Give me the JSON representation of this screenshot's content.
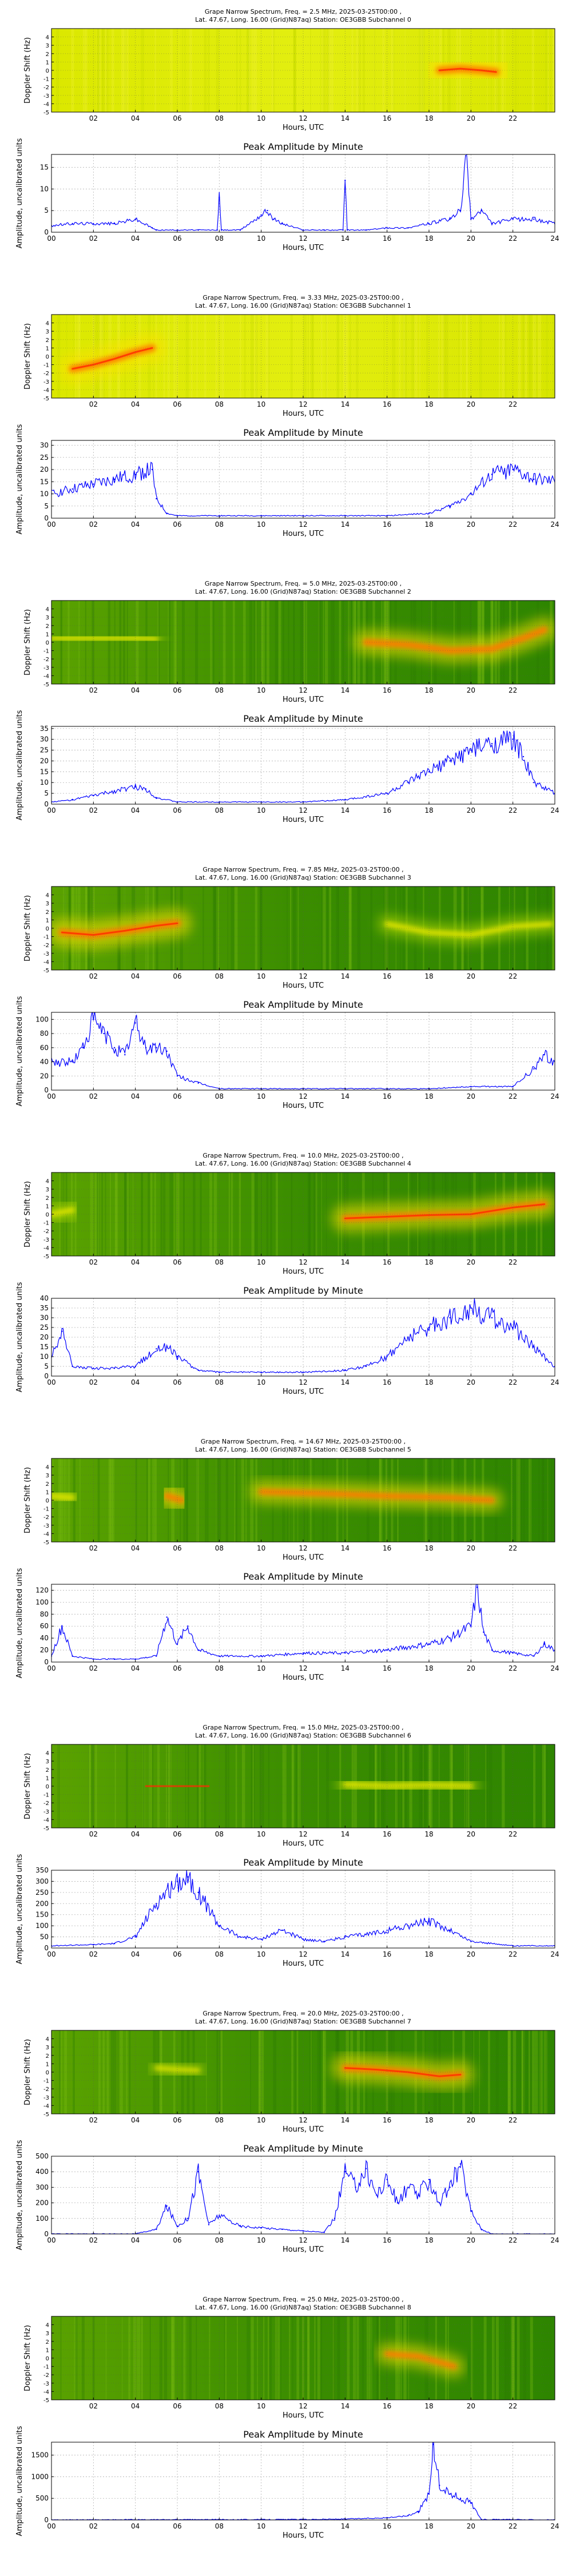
{
  "common": {
    "xlabel": "Hours, UTC",
    "spec_ylabel": "Doppler Shift (Hz)",
    "amp_ylabel": "Amplitude, uncalibrated units",
    "amp_title": "Peak Amplitude by Minute",
    "spec_xticks": [
      "02",
      "04",
      "06",
      "08",
      "10",
      "12",
      "14",
      "16",
      "18",
      "20",
      "22"
    ],
    "spec_yticks": [
      "4",
      "3",
      "2",
      "1",
      "0",
      "-1",
      "-2",
      "-3",
      "-4",
      "-5"
    ],
    "amp_xticks": [
      "00",
      "02",
      "04",
      "06",
      "08",
      "10",
      "12",
      "14",
      "16",
      "18",
      "20",
      "22",
      "24"
    ],
    "colors": {
      "spec_low": "#2e8b00",
      "spec_mid": "#c8e600",
      "spec_high": "#ffe400",
      "spec_peak": "#ff3c00",
      "line": "#0000ff",
      "grid": "#b0b0b0"
    }
  },
  "chart_data": [
    {
      "type": "heatmap",
      "kind": "spectrogram",
      "title": "Grape Narrow Spectrum, Freq. = 2.5 MHz, 2025-03-25T00:00 ,",
      "subtitle": "Lat.  47.67, Long.  16.00 (Grid)N87aq) Station: OE3GBB Subchannel 0",
      "xlim": [
        0,
        24
      ],
      "ylim": [
        -5,
        5
      ],
      "background": "yellow",
      "traces": [
        {
          "x": [
            18.5,
            19.5,
            20.5,
            21.2
          ],
          "y": [
            0.0,
            0.2,
            0.0,
            -0.2
          ],
          "intensity": 1.0
        }
      ]
    },
    {
      "type": "line",
      "title": "Peak Amplitude by Minute",
      "ylim": [
        0,
        18
      ],
      "yticks": [
        0,
        5,
        10,
        15
      ],
      "x": [
        0,
        1,
        2,
        3,
        4,
        4.8,
        5,
        6,
        7,
        7.9,
        8,
        8.1,
        9,
        10,
        10.3,
        10.6,
        11,
        12,
        13,
        13.9,
        14,
        14.1,
        15,
        16,
        17,
        18,
        19,
        19.5,
        19.8,
        20,
        20.5,
        21,
        22,
        23,
        24
      ],
      "values": [
        1.5,
        2,
        2,
        2,
        3,
        1,
        0.5,
        0.5,
        0.5,
        0.5,
        8,
        0.5,
        0.5,
        4,
        5,
        3,
        2,
        0.5,
        0.5,
        0.5,
        12,
        0.5,
        0.5,
        1,
        1,
        2,
        3,
        5,
        18,
        3,
        5,
        2,
        3,
        3,
        2
      ]
    },
    {
      "type": "heatmap",
      "kind": "spectrogram",
      "title": "Grape Narrow Spectrum, Freq. = 3.33 MHz, 2025-03-25T00:00 ,",
      "subtitle": "Lat.  47.67, Long.  16.00 (Grid)N87aq) Station: OE3GBB Subchannel 1",
      "xlim": [
        0,
        24
      ],
      "ylim": [
        -5,
        5
      ],
      "background": "yellow",
      "traces": [
        {
          "x": [
            1.0,
            2.0,
            3.0,
            4.0,
            4.8
          ],
          "y": [
            -1.5,
            -1.0,
            -0.3,
            0.5,
            1.0
          ],
          "intensity": 1.0
        }
      ]
    },
    {
      "type": "line",
      "title": "Peak Amplitude by Minute",
      "ylim": [
        0,
        32
      ],
      "yticks": [
        0,
        5,
        10,
        15,
        20,
        25,
        30
      ],
      "x": [
        0,
        1,
        2,
        3,
        4,
        4.8,
        5,
        5.5,
        6,
        8,
        10,
        12,
        14,
        16,
        18,
        19,
        20,
        21,
        22,
        23,
        24
      ],
      "values": [
        10,
        12,
        14,
        16,
        18,
        20,
        8,
        2,
        1,
        1,
        1,
        1,
        1,
        1,
        2,
        5,
        10,
        18,
        20,
        16,
        15
      ]
    },
    {
      "type": "heatmap",
      "kind": "spectrogram",
      "title": "Grape Narrow Spectrum, Freq. = 5.0 MHz, 2025-03-25T00:00 ,",
      "subtitle": "Lat.  47.67, Long.  16.00 (Grid)N87aq) Station: OE3GBB Subchannel 2",
      "xlim": [
        0,
        24
      ],
      "ylim": [
        -5,
        5
      ],
      "background": "green",
      "traces": [
        {
          "x": [
            15,
            17,
            19,
            21,
            22.5,
            23.5
          ],
          "y": [
            0,
            -0.3,
            -1.0,
            -0.8,
            0.5,
            1.5
          ],
          "intensity": 0.85
        },
        {
          "x": [
            0,
            2,
            4,
            5
          ],
          "y": [
            0.5,
            0.5,
            0.5,
            0.4
          ],
          "intensity": 0.35
        }
      ]
    },
    {
      "type": "line",
      "title": "Peak Amplitude by Minute",
      "ylim": [
        0,
        36
      ],
      "yticks": [
        0,
        5,
        10,
        15,
        20,
        25,
        30,
        35
      ],
      "x": [
        0,
        1,
        2,
        3,
        4,
        4.5,
        5,
        6,
        8,
        10,
        12,
        14,
        16,
        17,
        18,
        19,
        20,
        21,
        22,
        22.5,
        23,
        24
      ],
      "values": [
        1,
        2,
        4,
        6,
        8,
        7,
        3,
        1,
        1,
        1,
        1,
        2,
        5,
        10,
        15,
        20,
        25,
        28,
        30,
        22,
        10,
        5
      ]
    },
    {
      "type": "heatmap",
      "kind": "spectrogram",
      "title": "Grape Narrow Spectrum, Freq. = 7.85 MHz, 2025-03-25T00:00 ,",
      "subtitle": "Lat.  47.67, Long.  16.00 (Grid)N87aq) Station: OE3GBB Subchannel 3",
      "xlim": [
        0,
        24
      ],
      "ylim": [
        -5,
        5
      ],
      "background": "green",
      "traces": [
        {
          "x": [
            0.5,
            2,
            3.5,
            5,
            6
          ],
          "y": [
            -0.5,
            -0.8,
            -0.3,
            0.3,
            0.6
          ],
          "intensity": 1.0
        },
        {
          "x": [
            16,
            18,
            20,
            22,
            23.8
          ],
          "y": [
            0.5,
            -0.5,
            -0.8,
            0.2,
            0.5
          ],
          "intensity": 0.55
        }
      ]
    },
    {
      "type": "line",
      "title": "Peak Amplitude by Minute",
      "ylim": [
        0,
        110
      ],
      "yticks": [
        0,
        20,
        40,
        60,
        80,
        100
      ],
      "x": [
        0,
        1,
        1.5,
        2,
        2.5,
        3,
        3.5,
        4,
        4.5,
        5,
        5.5,
        6,
        7,
        8,
        10,
        12,
        14,
        16,
        18,
        20,
        22,
        23,
        23.5,
        24
      ],
      "values": [
        40,
        40,
        60,
        100,
        80,
        60,
        50,
        95,
        60,
        60,
        55,
        20,
        10,
        2,
        2,
        2,
        2,
        2,
        2,
        5,
        5,
        30,
        50,
        40
      ]
    },
    {
      "type": "heatmap",
      "kind": "spectrogram",
      "title": "Grape Narrow Spectrum, Freq. = 10.0 MHz, 2025-03-25T00:00 ,",
      "subtitle": "Lat.  47.67, Long.  16.00 (Grid)N87aq) Station: OE3GBB Subchannel 4",
      "xlim": [
        0,
        24
      ],
      "ylim": [
        -5,
        5
      ],
      "background": "green",
      "traces": [
        {
          "x": [
            14,
            16,
            18,
            20,
            22,
            23.5
          ],
          "y": [
            -0.5,
            -0.3,
            -0.1,
            0.0,
            0.8,
            1.2
          ],
          "intensity": 0.95
        },
        {
          "x": [
            0,
            1
          ],
          "y": [
            0,
            0.5
          ],
          "intensity": 0.5
        }
      ]
    },
    {
      "type": "line",
      "title": "Peak Amplitude by Minute",
      "ylim": [
        0,
        40
      ],
      "yticks": [
        0,
        5,
        10,
        15,
        20,
        25,
        30,
        35,
        40
      ],
      "x": [
        0,
        0.5,
        1,
        2,
        3,
        4,
        5,
        5.5,
        6,
        7,
        8,
        10,
        12,
        14,
        15,
        16,
        17,
        18,
        19,
        20,
        21,
        22,
        23,
        24
      ],
      "values": [
        10,
        23,
        5,
        4,
        4,
        5,
        14,
        15,
        10,
        3,
        2,
        2,
        2,
        3,
        5,
        10,
        20,
        25,
        30,
        35,
        30,
        25,
        15,
        5
      ]
    },
    {
      "type": "heatmap",
      "kind": "spectrogram",
      "title": "Grape Narrow Spectrum, Freq. = 14.67 MHz, 2025-03-25T00:00 ,",
      "subtitle": "Lat.  47.67, Long.  16.00 (Grid)N87aq) Station: OE3GBB Subchannel 5",
      "xlim": [
        0,
        24
      ],
      "ylim": [
        -5,
        5
      ],
      "background": "green",
      "traces": [
        {
          "x": [
            10,
            13,
            16,
            19,
            21
          ],
          "y": [
            1.0,
            0.8,
            0.5,
            0.3,
            0.0
          ],
          "intensity": 0.75
        },
        {
          "x": [
            5.5,
            6.2
          ],
          "y": [
            0.5,
            0.0
          ],
          "intensity": 0.8
        },
        {
          "x": [
            0,
            1
          ],
          "y": [
            0.5,
            0.3
          ],
          "intensity": 0.5
        }
      ]
    },
    {
      "type": "line",
      "title": "Peak Amplitude by Minute",
      "ylim": [
        0,
        130
      ],
      "yticks": [
        0,
        20,
        40,
        60,
        80,
        100,
        120
      ],
      "x": [
        0,
        0.5,
        1,
        2,
        3,
        4,
        5,
        5.5,
        6,
        6.5,
        7,
        8,
        10,
        12,
        14,
        16,
        18,
        19,
        20,
        20.3,
        20.6,
        21,
        22,
        23,
        23.5,
        24
      ],
      "values": [
        10,
        60,
        10,
        5,
        5,
        5,
        10,
        75,
        30,
        60,
        20,
        10,
        10,
        15,
        15,
        20,
        30,
        40,
        60,
        125,
        50,
        20,
        15,
        10,
        30,
        20
      ]
    },
    {
      "type": "heatmap",
      "kind": "spectrogram",
      "title": "Grape Narrow Spectrum, Freq. = 15.0 MHz, 2025-03-25T00:00 ,",
      "subtitle": "Lat.  47.67, Long.  16.00 (Grid)N87aq) Station: OE3GBB Subchannel 6",
      "xlim": [
        0,
        24
      ],
      "ylim": [
        -5,
        5
      ],
      "background": "green",
      "traces": [
        {
          "x": [
            4.5,
            5.5,
            6.5,
            7.5
          ],
          "y": [
            0,
            0,
            0,
            0
          ],
          "intensity": 1.0
        },
        {
          "x": [
            14,
            16,
            18,
            20
          ],
          "y": [
            0.2,
            0.0,
            0.1,
            0.0
          ],
          "intensity": 0.5
        }
      ]
    },
    {
      "type": "line",
      "title": "Peak Amplitude by Minute",
      "ylim": [
        0,
        350
      ],
      "yticks": [
        0,
        50,
        100,
        150,
        200,
        250,
        300,
        350
      ],
      "x": [
        0,
        2,
        3,
        4,
        5,
        6,
        6.5,
        7,
        8,
        9,
        10,
        11,
        12,
        13,
        14,
        15,
        16,
        17,
        18,
        19,
        20,
        22,
        24
      ],
      "values": [
        10,
        15,
        20,
        50,
        200,
        300,
        320,
        250,
        100,
        50,
        40,
        80,
        40,
        30,
        50,
        60,
        80,
        100,
        120,
        80,
        30,
        10,
        10
      ]
    },
    {
      "type": "heatmap",
      "kind": "spectrogram",
      "title": "Grape Narrow Spectrum, Freq. = 20.0 MHz, 2025-03-25T00:00 ,",
      "subtitle": "Lat.  47.67, Long.  16.00 (Grid)N87aq) Station: OE3GBB Subchannel 7",
      "xlim": [
        0,
        24
      ],
      "ylim": [
        -5,
        5
      ],
      "background": "green",
      "traces": [
        {
          "x": [
            14,
            15.5,
            17,
            18.5,
            19.5
          ],
          "y": [
            0.5,
            0.3,
            0.0,
            -0.5,
            -0.3
          ],
          "intensity": 0.95
        },
        {
          "x": [
            5,
            6,
            7
          ],
          "y": [
            0.5,
            0.3,
            0.2
          ],
          "intensity": 0.35
        }
      ]
    },
    {
      "type": "line",
      "title": "Peak Amplitude by Minute",
      "ylim": [
        0,
        500
      ],
      "yticks": [
        0,
        100,
        200,
        300,
        400,
        500
      ],
      "x": [
        0,
        4,
        5,
        5.5,
        6,
        6.5,
        7,
        7.5,
        8,
        9,
        10,
        11,
        12,
        13,
        13.5,
        14,
        14.5,
        15,
        15.5,
        16,
        16.5,
        17,
        17.5,
        18,
        18.5,
        19,
        19.5,
        20,
        20.5,
        21,
        24
      ],
      "values": [
        0,
        0,
        30,
        180,
        50,
        100,
        400,
        60,
        120,
        50,
        40,
        30,
        20,
        10,
        100,
        400,
        300,
        420,
        250,
        350,
        200,
        300,
        250,
        350,
        200,
        300,
        450,
        150,
        30,
        0,
        0
      ]
    },
    {
      "type": "heatmap",
      "kind": "spectrogram",
      "title": "Grape Narrow Spectrum, Freq. = 25.0 MHz, 2025-03-25T00:00 ,",
      "subtitle": "Lat.  47.67, Long.  16.00 (Grid)N87aq) Station: OE3GBB Subchannel 8",
      "xlim": [
        0,
        24
      ],
      "ylim": [
        -5,
        5
      ],
      "background": "green",
      "traces": [
        {
          "x": [
            16,
            17.5,
            18.5,
            19.2
          ],
          "y": [
            0.5,
            0.2,
            -0.5,
            -1.0
          ],
          "intensity": 0.7
        }
      ]
    },
    {
      "type": "line",
      "title": "Peak Amplitude by Minute",
      "ylim": [
        0,
        1800
      ],
      "yticks": [
        0,
        500,
        1000,
        1500
      ],
      "x": [
        0,
        12,
        14,
        16,
        17,
        17.5,
        18,
        18.2,
        18.5,
        19,
        19.5,
        20,
        20.5,
        24
      ],
      "values": [
        0,
        10,
        20,
        50,
        100,
        200,
        600,
        1750,
        800,
        600,
        500,
        400,
        10,
        0
      ]
    }
  ]
}
